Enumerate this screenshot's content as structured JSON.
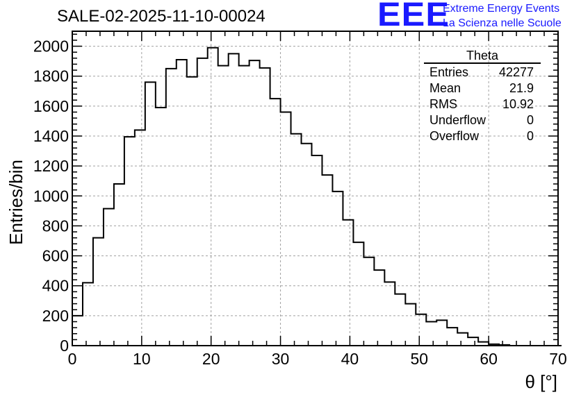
{
  "title": "SALE-02-2025-11-10-00024",
  "logo": {
    "mark": "EEE",
    "line1": "Extreme Energy Events",
    "line2": "La Scienza nelle Scuole"
  },
  "stats": {
    "name": "Theta",
    "rows": [
      {
        "label": "Entries",
        "value": "42277"
      },
      {
        "label": "Mean",
        "value": "21.9"
      },
      {
        "label": "RMS",
        "value": "10.92"
      },
      {
        "label": "Underflow",
        "value": "0"
      },
      {
        "label": "Overflow",
        "value": "0"
      }
    ]
  },
  "chart_data": {
    "type": "histogram",
    "title": "SALE-02-2025-11-10-00024",
    "xlabel": "θ [°]",
    "ylabel": "Entries/bin",
    "xlim": [
      0,
      70
    ],
    "ylim": [
      0,
      2100
    ],
    "xticks": [
      0,
      10,
      20,
      30,
      40,
      50,
      60,
      70
    ],
    "yticks": [
      0,
      200,
      400,
      600,
      800,
      1000,
      1200,
      1400,
      1600,
      1800,
      2000
    ],
    "grid": true,
    "bin_width": 1.5,
    "bin_edges_start": 0,
    "values": [
      200,
      420,
      720,
      915,
      1080,
      1395,
      1440,
      1760,
      1590,
      1850,
      1910,
      1795,
      1920,
      1990,
      1870,
      1950,
      1870,
      1905,
      1855,
      1650,
      1560,
      1415,
      1350,
      1270,
      1140,
      1030,
      840,
      690,
      590,
      505,
      425,
      345,
      280,
      210,
      160,
      170,
      120,
      85,
      55,
      25,
      10,
      5,
      0,
      0,
      0,
      0,
      0
    ]
  }
}
